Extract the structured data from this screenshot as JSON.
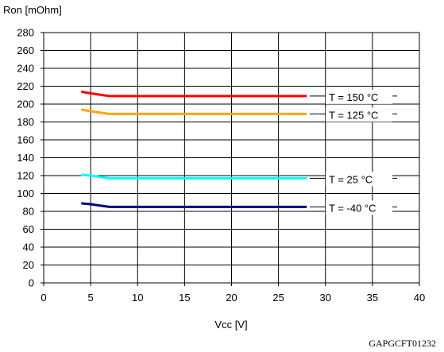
{
  "chart_data": {
    "type": "line",
    "ylabel": "Ron [mOhm]",
    "xlabel": "Vcc [V]",
    "xlim": [
      0,
      40
    ],
    "ylim": [
      0,
      280
    ],
    "x_ticks": [
      "0",
      "5",
      "10",
      "15",
      "20",
      "25",
      "30",
      "35",
      "40"
    ],
    "y_ticks": [
      "0",
      "20",
      "40",
      "60",
      "80",
      "100",
      "120",
      "140",
      "160",
      "180",
      "200",
      "220",
      "240",
      "260",
      "280"
    ],
    "grid": true,
    "series": [
      {
        "name": "T = 150 °C",
        "color": "#ff0000",
        "x": [
          4,
          5,
          7,
          10,
          15,
          20,
          28
        ],
        "y": [
          214,
          212,
          209,
          209,
          209,
          209,
          209
        ]
      },
      {
        "name": "T = 125 °C",
        "color": "#ffa500",
        "x": [
          4,
          5,
          7,
          10,
          15,
          20,
          28
        ],
        "y": [
          194,
          192,
          189,
          189,
          189,
          189,
          189
        ]
      },
      {
        "name": "T = 25 °C",
        "color": "#00ffff",
        "x": [
          4,
          5,
          7,
          10,
          15,
          20,
          28
        ],
        "y": [
          121,
          120,
          117,
          117,
          117,
          117,
          117
        ]
      },
      {
        "name": "T = -40 °C",
        "color": "#000080",
        "x": [
          4,
          5,
          7,
          10,
          15,
          20,
          28
        ],
        "y": [
          89,
          88,
          85,
          85,
          85,
          85,
          85
        ]
      }
    ]
  },
  "figure_code": "GAPGCFT01232"
}
